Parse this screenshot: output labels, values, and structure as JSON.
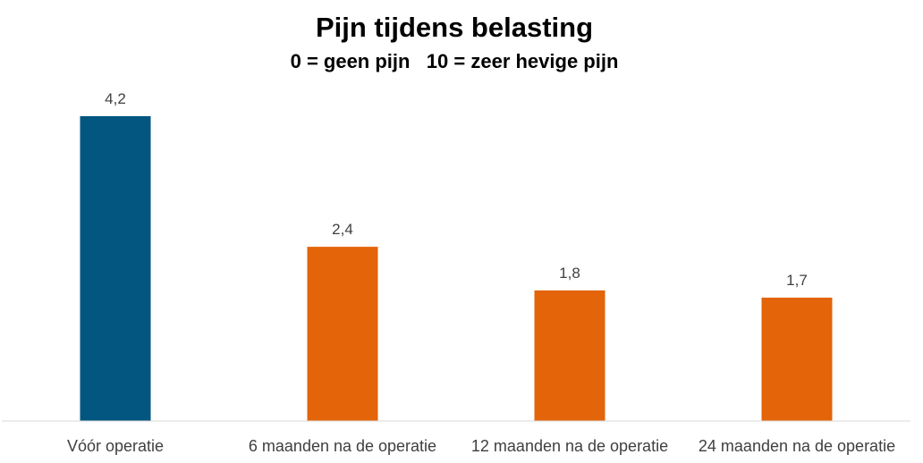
{
  "chart_data": {
    "type": "bar",
    "title": "Pijn tijdens belasting",
    "subtitle": "0 = geen pijn   10 = zeer hevige pijn",
    "xlabel": "",
    "ylabel": "",
    "categories": [
      "Vóór operatie",
      "6 maanden na de operatie",
      "12 maanden na de operatie",
      "24 maanden na de operatie"
    ],
    "values": [
      4.2,
      2.4,
      1.8,
      1.7
    ],
    "value_labels": [
      "4,2",
      "2,4",
      "1,8",
      "1,7"
    ],
    "bar_colors": [
      "#02567f",
      "#e36409",
      "#e36409",
      "#e36409"
    ],
    "ylim": [
      0,
      4.5
    ],
    "grid": false,
    "legend": "none"
  }
}
